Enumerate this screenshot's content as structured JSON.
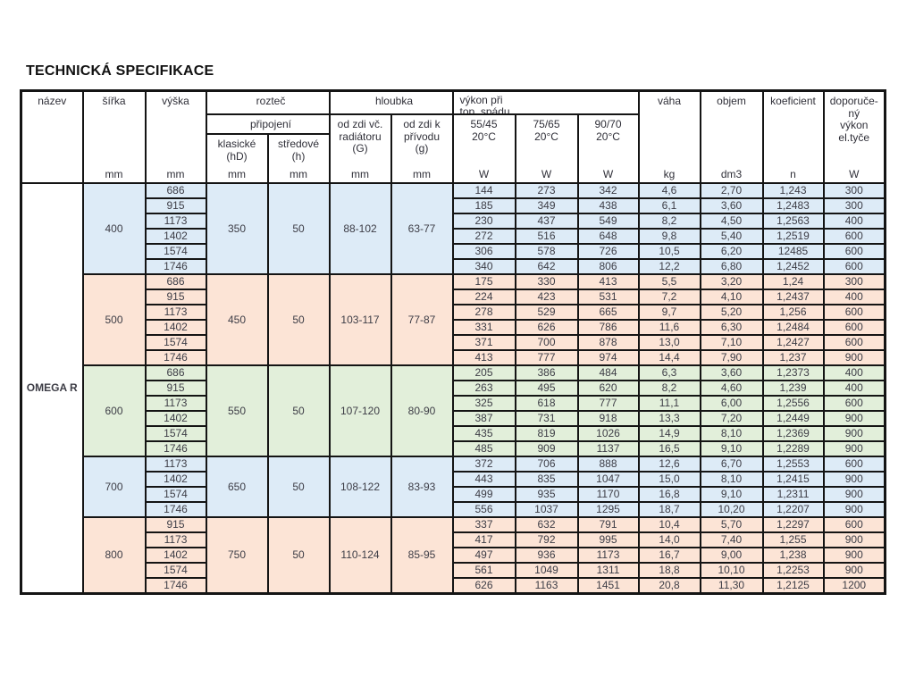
{
  "title": "TECHNICKÁ SPECIFIKACE",
  "product_name": "OMEGA R",
  "colors": {
    "group_blue": "#DDEBF7",
    "group_salmon": "#FCE4D6",
    "group_green": "#E2EFDA",
    "border": "#141414",
    "text": "#3d3d46"
  },
  "header": {
    "nazev": {
      "label": "název",
      "unit": ""
    },
    "sirka": {
      "label": "šířka",
      "unit": "mm"
    },
    "vyska": {
      "label": "výška",
      "unit": "mm"
    },
    "roztec": "rozteč",
    "pripojeni": "připojení",
    "klasicke": {
      "label": "klasické\n(hD)",
      "unit": "mm"
    },
    "stredove": {
      "label": "středové\n(h)",
      "unit": "mm"
    },
    "hloubka": "hloubka",
    "od_zdi_radiatoru": {
      "label": "od zdi  vč.\nradiátoru\n(G)",
      "unit": "mm"
    },
    "od_zdi_privodu": {
      "label": "od zdi  k\npřívodu\n(g)",
      "unit": "mm"
    },
    "vykon": "výkon při\ntop. spádu",
    "v5545": {
      "label": "55/45\n20°C",
      "unit": "W"
    },
    "v7565": {
      "label": "75/65\n20°C",
      "unit": "W"
    },
    "v9070": {
      "label": "90/70\n20°C",
      "unit": "W"
    },
    "vaha": {
      "label": "váha",
      "unit": "kg"
    },
    "objem": {
      "label": "objem",
      "unit": "dm3"
    },
    "koeficient": {
      "label": "koeficient",
      "unit": "n"
    },
    "doporuceny": {
      "label": "doporuče-\nný\nvýkon\nel.tyče",
      "unit": "W"
    }
  },
  "groups": [
    {
      "sirka": "400",
      "color": "blue",
      "klasicke": "350",
      "stredove": "50",
      "hloubka_radiator": "88-102",
      "hloubka_privod": "63-77",
      "rows": [
        {
          "vyska": "686",
          "w5545": "144",
          "w7565": "273",
          "w9070": "342",
          "vaha": "4,6",
          "objem": "2,70",
          "koef": "1,243",
          "dopor": "300"
        },
        {
          "vyska": "915",
          "w5545": "185",
          "w7565": "349",
          "w9070": "438",
          "vaha": "6,1",
          "objem": "3,60",
          "koef": "1,2483",
          "dopor": "300"
        },
        {
          "vyska": "1173",
          "w5545": "230",
          "w7565": "437",
          "w9070": "549",
          "vaha": "8,2",
          "objem": "4,50",
          "koef": "1,2563",
          "dopor": "400"
        },
        {
          "vyska": "1402",
          "w5545": "272",
          "w7565": "516",
          "w9070": "648",
          "vaha": "9,8",
          "objem": "5,40",
          "koef": "1,2519",
          "dopor": "600"
        },
        {
          "vyska": "1574",
          "w5545": "306",
          "w7565": "578",
          "w9070": "726",
          "vaha": "10,5",
          "objem": "6,20",
          "koef": "12485",
          "dopor": "600"
        },
        {
          "vyska": "1746",
          "w5545": "340",
          "w7565": "642",
          "w9070": "806",
          "vaha": "12,2",
          "objem": "6,80",
          "koef": "1,2452",
          "dopor": "600"
        }
      ]
    },
    {
      "sirka": "500",
      "color": "salmon",
      "klasicke": "450",
      "stredove": "50",
      "hloubka_radiator": "103-117",
      "hloubka_privod": "77-87",
      "rows": [
        {
          "vyska": "686",
          "w5545": "175",
          "w7565": "330",
          "w9070": "413",
          "vaha": "5,5",
          "objem": "3,20",
          "koef": "1,24",
          "dopor": "300"
        },
        {
          "vyska": "915",
          "w5545": "224",
          "w7565": "423",
          "w9070": "531",
          "vaha": "7,2",
          "objem": "4,10",
          "koef": "1,2437",
          "dopor": "400"
        },
        {
          "vyska": "1173",
          "w5545": "278",
          "w7565": "529",
          "w9070": "665",
          "vaha": "9,7",
          "objem": "5,20",
          "koef": "1,256",
          "dopor": "600"
        },
        {
          "vyska": "1402",
          "w5545": "331",
          "w7565": "626",
          "w9070": "786",
          "vaha": "11,6",
          "objem": "6,30",
          "koef": "1,2484",
          "dopor": "600"
        },
        {
          "vyska": "1574",
          "w5545": "371",
          "w7565": "700",
          "w9070": "878",
          "vaha": "13,0",
          "objem": "7,10",
          "koef": "1,2427",
          "dopor": "600"
        },
        {
          "vyska": "1746",
          "w5545": "413",
          "w7565": "777",
          "w9070": "974",
          "vaha": "14,4",
          "objem": "7,90",
          "koef": "1,237",
          "dopor": "900"
        }
      ]
    },
    {
      "sirka": "600",
      "color": "green",
      "klasicke": "550",
      "stredove": "50",
      "hloubka_radiator": "107-120",
      "hloubka_privod": "80-90",
      "rows": [
        {
          "vyska": "686",
          "w5545": "205",
          "w7565": "386",
          "w9070": "484",
          "vaha": "6,3",
          "objem": "3,60",
          "koef": "1,2373",
          "dopor": "400"
        },
        {
          "vyska": "915",
          "w5545": "263",
          "w7565": "495",
          "w9070": "620",
          "vaha": "8,2",
          "objem": "4,60",
          "koef": "1,239",
          "dopor": "400"
        },
        {
          "vyska": "1173",
          "w5545": "325",
          "w7565": "618",
          "w9070": "777",
          "vaha": "11,1",
          "objem": "6,00",
          "koef": "1,2556",
          "dopor": "600"
        },
        {
          "vyska": "1402",
          "w5545": "387",
          "w7565": "731",
          "w9070": "918",
          "vaha": "13,3",
          "objem": "7,20",
          "koef": "1,2449",
          "dopor": "900"
        },
        {
          "vyska": "1574",
          "w5545": "435",
          "w7565": "819",
          "w9070": "1026",
          "vaha": "14,9",
          "objem": "8,10",
          "koef": "1,2369",
          "dopor": "900"
        },
        {
          "vyska": "1746",
          "w5545": "485",
          "w7565": "909",
          "w9070": "1137",
          "vaha": "16,5",
          "objem": "9,10",
          "koef": "1,2289",
          "dopor": "900"
        }
      ]
    },
    {
      "sirka": "700",
      "color": "blue",
      "klasicke": "650",
      "stredove": "50",
      "hloubka_radiator": "108-122",
      "hloubka_privod": "83-93",
      "rows": [
        {
          "vyska": "1173",
          "w5545": "372",
          "w7565": "706",
          "w9070": "888",
          "vaha": "12,6",
          "objem": "6,70",
          "koef": "1,2553",
          "dopor": "600"
        },
        {
          "vyska": "1402",
          "w5545": "443",
          "w7565": "835",
          "w9070": "1047",
          "vaha": "15,0",
          "objem": "8,10",
          "koef": "1,2415",
          "dopor": "900"
        },
        {
          "vyska": "1574",
          "w5545": "499",
          "w7565": "935",
          "w9070": "1170",
          "vaha": "16,8",
          "objem": "9,10",
          "koef": "1,2311",
          "dopor": "900"
        },
        {
          "vyska": "1746",
          "w5545": "556",
          "w7565": "1037",
          "w9070": "1295",
          "vaha": "18,7",
          "objem": "10,20",
          "koef": "1,2207",
          "dopor": "900"
        }
      ]
    },
    {
      "sirka": "800",
      "color": "salmon",
      "klasicke": "750",
      "stredove": "50",
      "hloubka_radiator": "110-124",
      "hloubka_privod": "85-95",
      "rows": [
        {
          "vyska": "915",
          "w5545": "337",
          "w7565": "632",
          "w9070": "791",
          "vaha": "10,4",
          "objem": "5,70",
          "koef": "1,2297",
          "dopor": "600"
        },
        {
          "vyska": "1173",
          "w5545": "417",
          "w7565": "792",
          "w9070": "995",
          "vaha": "14,0",
          "objem": "7,40",
          "koef": "1,255",
          "dopor": "900"
        },
        {
          "vyska": "1402",
          "w5545": "497",
          "w7565": "936",
          "w9070": "1173",
          "vaha": "16,7",
          "objem": "9,00",
          "koef": "1,238",
          "dopor": "900"
        },
        {
          "vyska": "1574",
          "w5545": "561",
          "w7565": "1049",
          "w9070": "1311",
          "vaha": "18,8",
          "objem": "10,10",
          "koef": "1,2253",
          "dopor": "900"
        },
        {
          "vyska": "1746",
          "w5545": "626",
          "w7565": "1163",
          "w9070": "1451",
          "vaha": "20,8",
          "objem": "11,30",
          "koef": "1,2125",
          "dopor": "1200"
        }
      ]
    }
  ]
}
